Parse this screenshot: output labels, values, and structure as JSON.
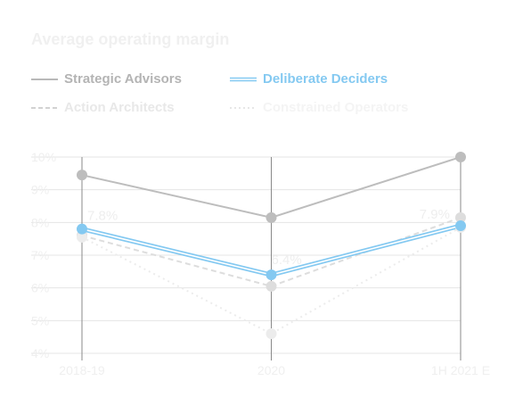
{
  "title": "Average operating margin",
  "legend": [
    {
      "label": "Strategic Advisors",
      "color": "#b9b9b9",
      "text_color": "#b4b4b4",
      "style": "solid"
    },
    {
      "label": "Deliberate Deciders",
      "color": "#84c9f1",
      "text_color": "#84c9f1",
      "style": "double"
    },
    {
      "label": "Action Architects",
      "color": "#d2d2d2",
      "text_color": "#e8e8e8",
      "style": "dashed"
    },
    {
      "label": "Constrained Operators",
      "color": "#e6e6e6",
      "text_color": "#f4f4f4",
      "style": "dotted"
    }
  ],
  "chart_data": {
    "type": "line",
    "title": "Average operating margin",
    "categories": [
      "2018-19",
      "2020",
      "1H 2021 E"
    ],
    "ylim": [
      4,
      10
    ],
    "yticks": [
      4,
      5,
      6,
      7,
      8,
      9,
      10
    ],
    "ytick_labels": [
      "4%",
      "5%",
      "6%",
      "7%",
      "8%",
      "9%",
      "10%"
    ],
    "grid": true,
    "legend_position": "top-left",
    "series": [
      {
        "name": "Strategic Advisors",
        "values": [
          9.45,
          8.15,
          10.0
        ],
        "color": "#bdbdbd",
        "style": "solid"
      },
      {
        "name": "Action Architects",
        "values": [
          7.6,
          6.05,
          8.15
        ],
        "color": "#dddddd",
        "style": "dashed"
      },
      {
        "name": "Constrained Operators",
        "values": [
          7.55,
          4.6,
          7.85
        ],
        "color": "#ececec",
        "style": "dotted"
      },
      {
        "name": "Deliberate Deciders",
        "values": [
          7.8,
          6.4,
          7.9
        ],
        "color": "#84c9f1",
        "style": "double"
      }
    ],
    "data_labels": [
      {
        "text": "7.8%",
        "series": "Deliberate Deciders",
        "index": 0
      },
      {
        "text": "6.4%",
        "series": "Deliberate Deciders",
        "index": 1
      },
      {
        "text": "7.9%",
        "series": "Deliberate Deciders",
        "index": 2
      }
    ]
  }
}
